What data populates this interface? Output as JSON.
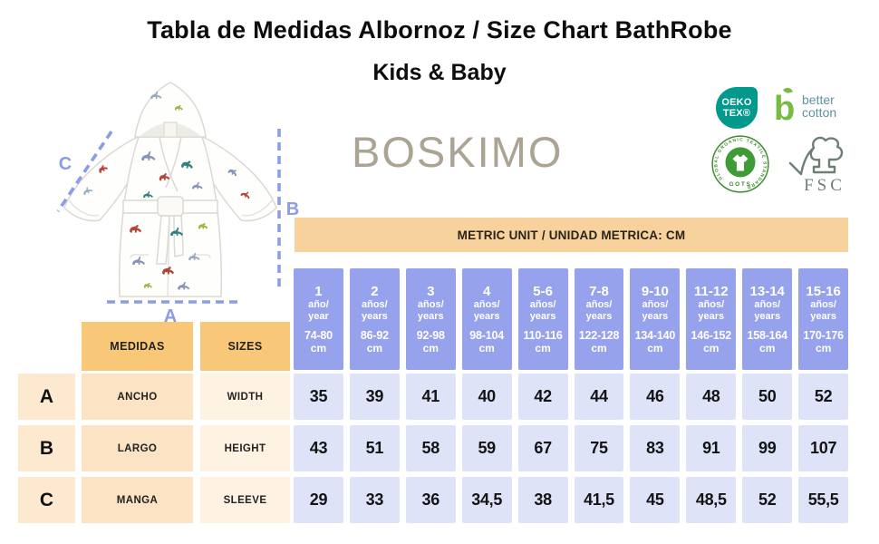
{
  "header": {
    "title": "Tabla de Medidas Albornoz / Size Chart BathRobe",
    "subtitle": "Kids & Baby"
  },
  "brand": "BOSKIMO",
  "diagram": {
    "label_a": "A",
    "label_b": "B",
    "label_c": "C"
  },
  "certifications": {
    "oeko_line1": "OEKO",
    "oeko_line2": "TEX®",
    "better_line1": "better",
    "better_line2": "cotton",
    "gots_ring_text": "GLOBAL ORGANIC TEXTILE STANDARD",
    "gots_text": "GOTS",
    "fsc_text": "FSC"
  },
  "banner": "METRIC UNIT / UNIDAD METRICA: CM",
  "table": {
    "header_es": "MEDIDAS",
    "header_en": "SIZES",
    "columns": [
      {
        "size": "1",
        "age_es": "año/",
        "age_en": "year",
        "range": "74-80",
        "unit": "cm"
      },
      {
        "size": "2",
        "age_es": "años/",
        "age_en": "years",
        "range": "86-92",
        "unit": "cm"
      },
      {
        "size": "3",
        "age_es": "años/",
        "age_en": "years",
        "range": "92-98",
        "unit": "cm"
      },
      {
        "size": "4",
        "age_es": "años/",
        "age_en": "years",
        "range": "98-104",
        "unit": "cm"
      },
      {
        "size": "5-6",
        "age_es": "años/",
        "age_en": "years",
        "range": "110-116",
        "unit": "cm"
      },
      {
        "size": "7-8",
        "age_es": "años/",
        "age_en": "years",
        "range": "122-128",
        "unit": "cm"
      },
      {
        "size": "9-10",
        "age_es": "años/",
        "age_en": "years",
        "range": "134-140",
        "unit": "cm"
      },
      {
        "size": "11-12",
        "age_es": "años/",
        "age_en": "years",
        "range": "146-152",
        "unit": "cm"
      },
      {
        "size": "13-14",
        "age_es": "años/",
        "age_en": "years",
        "range": "158-164",
        "unit": "cm"
      },
      {
        "size": "15-16",
        "age_es": "años/",
        "age_en": "years",
        "range": "170-176",
        "unit": "cm"
      }
    ],
    "rows": [
      {
        "letter": "A",
        "es": "ANCHO",
        "en": "WIDTH",
        "values": [
          "35",
          "39",
          "41",
          "40",
          "42",
          "44",
          "46",
          "48",
          "50",
          "52"
        ]
      },
      {
        "letter": "B",
        "es": "LARGO",
        "en": "HEIGHT",
        "values": [
          "43",
          "51",
          "58",
          "59",
          "67",
          "75",
          "83",
          "91",
          "99",
          "107"
        ]
      },
      {
        "letter": "C",
        "es": "MANGA",
        "en": "SLEEVE",
        "values": [
          "29",
          "33",
          "36",
          "34,5",
          "38",
          "41,5",
          "45",
          "48,5",
          "52",
          "55,5"
        ]
      }
    ]
  },
  "colors": {
    "header_blue": "#97a2ec",
    "cell_blue": "#dee3f8",
    "orange_dark": "#f8c778",
    "orange_banner": "#f8d29c",
    "cream": "#fce9cf",
    "cream_mid": "#fbe3c3",
    "cream_light": "#fef3e3",
    "dim_blue": "#8b9ce8"
  },
  "chart_data": {
    "type": "table",
    "title": "Tabla de Medidas Albornoz / Size Chart BathRobe — Kids & Baby",
    "unit": "cm",
    "columns": [
      "1 año/year 74-80 cm",
      "2 años/years 86-92 cm",
      "3 años/years 92-98 cm",
      "4 años/years 98-104 cm",
      "5-6 años/years 110-116 cm",
      "7-8 años/years 122-128 cm",
      "9-10 años/years 134-140 cm",
      "11-12 años/years 146-152 cm",
      "13-14 años/years 158-164 cm",
      "15-16 años/years 170-176 cm"
    ],
    "rows": [
      {
        "label": "A — ANCHO / WIDTH",
        "values": [
          35,
          39,
          41,
          40,
          42,
          44,
          46,
          48,
          50,
          52
        ]
      },
      {
        "label": "B — LARGO / HEIGHT",
        "values": [
          43,
          51,
          58,
          59,
          67,
          75,
          83,
          91,
          99,
          107
        ]
      },
      {
        "label": "C — MANGA / SLEEVE",
        "values": [
          29,
          33,
          36,
          34.5,
          38,
          41.5,
          45,
          48.5,
          52,
          55.5
        ]
      }
    ]
  }
}
